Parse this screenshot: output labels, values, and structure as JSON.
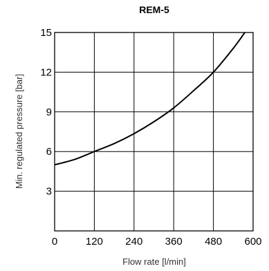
{
  "chart_data": {
    "type": "line",
    "title": "REM-5",
    "xlabel": "Flow rate [l/min]",
    "ylabel": "Min. regulated pressure [bar]",
    "xlim": [
      0,
      600
    ],
    "ylim": [
      0,
      15
    ],
    "xticks": [
      0,
      120,
      240,
      360,
      480,
      600
    ],
    "yticks": [
      3,
      6,
      9,
      12,
      15
    ],
    "grid": true,
    "series": [
      {
        "x": [
          0,
          60,
          120,
          180,
          240,
          300,
          360,
          420,
          480,
          540,
          575
        ],
        "y": [
          5.0,
          5.4,
          6.0,
          6.6,
          7.35,
          8.25,
          9.3,
          10.6,
          12.0,
          13.8,
          15.0
        ]
      }
    ]
  }
}
